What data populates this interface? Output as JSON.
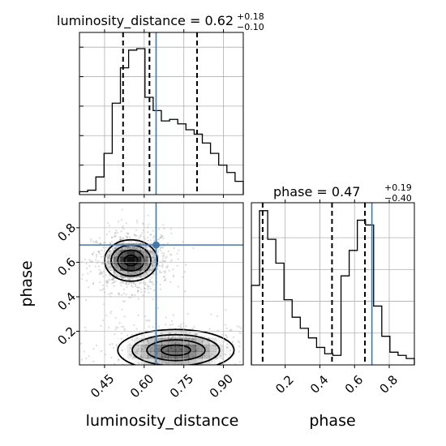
{
  "chart_data": {
    "type": "corner",
    "parameters": [
      "luminosity_distance",
      "phase"
    ],
    "truths": {
      "luminosity_distance": 0.645,
      "phase": 0.7
    },
    "panels": {
      "luminosity_distance_hist": {
        "type": "histogram",
        "title": {
          "base": "luminosity_distance = 0.62",
          "plus": "+0.18",
          "minus": "−0.10"
        },
        "xlim": [
          0.355,
          0.975
        ],
        "bin_edges": [
          0.355,
          0.386,
          0.417,
          0.448,
          0.479,
          0.51,
          0.541,
          0.572,
          0.603,
          0.634,
          0.665,
          0.696,
          0.727,
          0.758,
          0.789,
          0.82,
          0.851,
          0.882,
          0.913,
          0.944,
          0.975
        ],
        "heights": [
          0.02,
          0.03,
          0.12,
          0.28,
          0.62,
          0.86,
          0.98,
          0.99,
          0.66,
          0.57,
          0.5,
          0.51,
          0.48,
          0.44,
          0.41,
          0.35,
          0.28,
          0.2,
          0.15,
          0.09
        ],
        "quantiles": [
          0.52,
          0.62,
          0.8
        ],
        "ylim": [
          0,
          1.1
        ],
        "ytick_values": [
          0.2,
          0.4,
          0.6,
          0.8,
          1.0
        ]
      },
      "phase_hist": {
        "type": "histogram",
        "title": {
          "base": "phase = 0.47",
          "plus": "+0.19",
          "minus": "−0.40"
        },
        "xlim": [
          0.005,
          0.945
        ],
        "bin_edges": [
          0.005,
          0.052,
          0.099,
          0.146,
          0.193,
          0.24,
          0.287,
          0.334,
          0.381,
          0.428,
          0.475,
          0.522,
          0.569,
          0.616,
          0.663,
          0.71,
          0.757,
          0.804,
          0.851,
          0.898,
          0.945
        ],
        "heights": [
          0.5,
          0.97,
          0.79,
          0.64,
          0.41,
          0.3,
          0.23,
          0.17,
          0.11,
          0.07,
          0.06,
          0.56,
          0.72,
          0.91,
          0.88,
          0.37,
          0.18,
          0.08,
          0.06,
          0.04
        ],
        "quantiles": [
          0.07,
          0.47,
          0.66
        ],
        "ylim": [
          0,
          1.02
        ],
        "xticks": [
          "0.2",
          "0.4",
          "0.6",
          "0.8"
        ],
        "xtick_values": [
          0.2,
          0.4,
          0.6,
          0.8
        ],
        "xlabel": "phase"
      },
      "joint": {
        "type": "density_contour",
        "xlim": [
          0.355,
          0.975
        ],
        "ylim": [
          0.005,
          0.945
        ],
        "xticks": [
          "0.45",
          "0.60",
          "0.75",
          "0.90"
        ],
        "xtick_values": [
          0.45,
          0.6,
          0.75,
          0.9
        ],
        "yticks": [
          "0.2",
          "0.4",
          "0.6",
          "0.8"
        ],
        "ytick_values": [
          0.2,
          0.4,
          0.6,
          0.8
        ],
        "xlabel": "luminosity_distance",
        "ylabel": "phase",
        "modes": [
          {
            "center": [
              0.55,
              0.61
            ],
            "spread": [
              0.05,
              0.06
            ],
            "peak": 1.0
          },
          {
            "center": [
              0.72,
              0.09
            ],
            "spread": [
              0.11,
              0.06
            ],
            "peak": 0.7
          }
        ]
      }
    },
    "colors": {
      "truth": "#4477aa",
      "line": "#000000",
      "grid": "#b0b0b0",
      "density": "#000000"
    },
    "grid": true
  }
}
